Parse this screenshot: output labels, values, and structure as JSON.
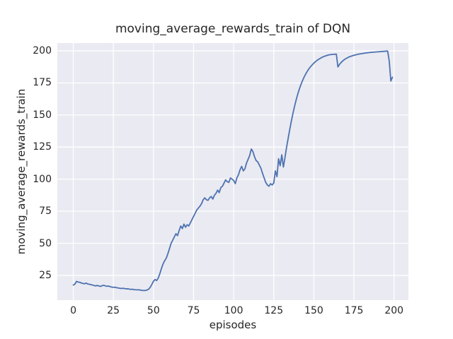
{
  "chart_data": {
    "type": "line",
    "title": "moving_average_rewards_train of DQN",
    "xlabel": "episodes",
    "ylabel": "moving_average_rewards_train",
    "xlim": [
      -9.95,
      208.95
    ],
    "ylim": [
      5.7,
      206.1
    ],
    "xticks": [
      0,
      25,
      50,
      75,
      100,
      125,
      150,
      175,
      200
    ],
    "yticks": [
      25,
      50,
      75,
      100,
      125,
      150,
      175,
      200
    ],
    "grid": true,
    "legend": "none",
    "style": "seaborn-darkgrid",
    "colors": {
      "line": "#4c72b0",
      "plot_background": "#eaeaf2",
      "grid": "#ffffff",
      "text": "#262626",
      "figure_background": "#ffffff"
    },
    "series": [
      {
        "name": "moving_average_rewards_train of DQN",
        "x_start": 0,
        "x_step": 1,
        "y": [
          17.5,
          18.2,
          20.3,
          19.8,
          19.6,
          19.1,
          18.7,
          18.5,
          19.0,
          18.3,
          18.1,
          17.8,
          17.5,
          17.1,
          16.8,
          17.2,
          16.7,
          16.4,
          17.0,
          17.3,
          16.8,
          16.5,
          16.7,
          16.2,
          15.9,
          15.7,
          15.8,
          15.4,
          15.2,
          15.0,
          14.8,
          15.0,
          14.7,
          14.5,
          14.6,
          14.3,
          14.1,
          14.2,
          13.9,
          13.8,
          13.7,
          13.8,
          13.5,
          13.3,
          13.2,
          13.3,
          13.6,
          14.3,
          15.8,
          18.0,
          20.5,
          21.8,
          21.0,
          23.0,
          26.5,
          30.5,
          34.0,
          36.5,
          38.5,
          42.0,
          46.0,
          50.0,
          52.5,
          55.0,
          57.5,
          56.0,
          60.0,
          63.5,
          61.5,
          65.0,
          62.5,
          64.5,
          63.5,
          66.0,
          68.5,
          71.0,
          73.5,
          76.0,
          77.5,
          79.0,
          81.0,
          84.0,
          85.5,
          84.0,
          83.5,
          85.5,
          86.5,
          84.5,
          87.5,
          89.0,
          91.5,
          89.5,
          93.5,
          94.5,
          97.0,
          99.5,
          98.0,
          97.5,
          101.0,
          100.0,
          99.0,
          96.5,
          101.0,
          103.5,
          107.5,
          110.0,
          106.5,
          108.0,
          112.5,
          115.5,
          118.5,
          123.5,
          121.5,
          117.5,
          114.5,
          113.5,
          111.0,
          108.5,
          104.5,
          101.0,
          97.5,
          95.5,
          94.5,
          96.5,
          95.5,
          97.0,
          106.5,
          102.0,
          116.0,
          110.5,
          119.0,
          109.5,
          117.0,
          125.0,
          132.0,
          139.0,
          145.5,
          151.5,
          157.0,
          162.0,
          166.5,
          170.5,
          174.0,
          177.0,
          179.8,
          182.2,
          184.3,
          186.2,
          187.8,
          189.2,
          190.5,
          191.6,
          192.6,
          193.5,
          194.2,
          194.9,
          195.5,
          196.0,
          196.4,
          196.8,
          197.0,
          197.2,
          197.3,
          197.4,
          197.5,
          187.5,
          189.5,
          191.0,
          192.2,
          193.2,
          194.0,
          194.7,
          195.3,
          195.8,
          196.2,
          196.6,
          196.9,
          197.2,
          197.5,
          197.7,
          197.9,
          198.1,
          198.3,
          198.5,
          198.6,
          198.8,
          198.9,
          199.0,
          199.1,
          199.2,
          199.3,
          199.4,
          199.5,
          199.6,
          199.7,
          199.8,
          199.9,
          192.0,
          176.5,
          179.5
        ]
      }
    ]
  }
}
